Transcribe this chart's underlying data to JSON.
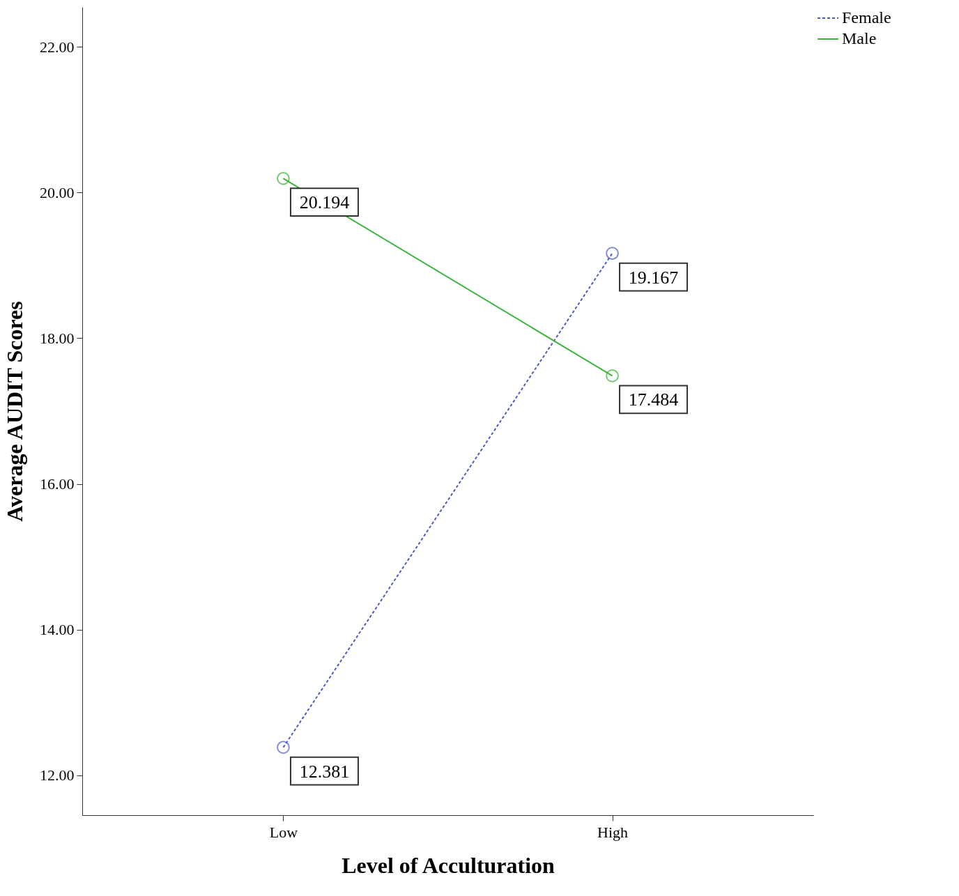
{
  "chart_data": {
    "type": "line",
    "xlabel": "Level of Acculturation",
    "ylabel": "Average AUDIT Scores",
    "categories": [
      "Low",
      "High"
    ],
    "series": [
      {
        "name": "Female",
        "color": "#4a5cc4",
        "line_style": "dashed",
        "values": [
          12.381,
          19.167
        ]
      },
      {
        "name": "Male",
        "color": "#3cb43c",
        "line_style": "solid",
        "values": [
          20.194,
          17.484
        ]
      }
    ],
    "ylim": [
      11.45,
      22.55
    ],
    "yticks": [
      {
        "value": 12,
        "label": "12.00"
      },
      {
        "value": 14,
        "label": "14.00"
      },
      {
        "value": 16,
        "label": "16.00"
      },
      {
        "value": 18,
        "label": "18.00"
      },
      {
        "value": 20,
        "label": "20.00"
      },
      {
        "value": 22,
        "label": "22.00"
      }
    ],
    "marker": "circle",
    "data_labels": true,
    "grid": false,
    "legend": "top right"
  }
}
